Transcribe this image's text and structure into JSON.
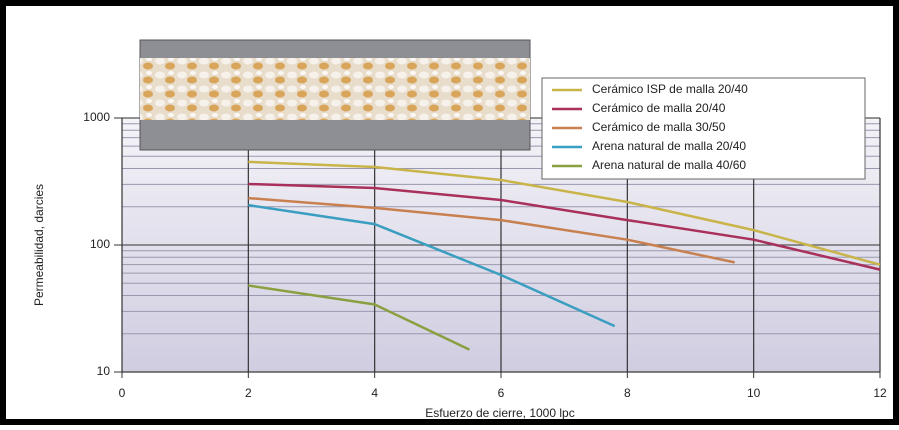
{
  "chart_data": {
    "type": "line",
    "x_label": "Esfuerzo de cierre, 1000 lpc",
    "y_label": "Permeabilidad, darcies",
    "xlim": [
      0,
      12
    ],
    "xticks": [
      0,
      2,
      4,
      6,
      8,
      10,
      12
    ],
    "ylim": [
      10,
      1000
    ],
    "yticks": [
      10,
      100,
      1000
    ],
    "log_y": true,
    "grid": true,
    "minor_grid": true,
    "legend": "upper right",
    "series": [
      {
        "name": "Cerámico ISP de malla 20/40",
        "color": "#c9b44a",
        "x": [
          2,
          4,
          6,
          8,
          10,
          12
        ],
        "values": [
          451,
          411,
          325,
          218,
          131,
          70
        ]
      },
      {
        "name": "Cerámico de malla 20/40",
        "color": "#a8305a",
        "x": [
          2,
          4,
          6,
          8,
          10,
          12
        ],
        "values": [
          302,
          281,
          226,
          157,
          110,
          64
        ]
      },
      {
        "name": "Cerámico de malla 30/50",
        "color": "#c88050",
        "x": [
          2,
          4,
          6,
          8,
          9.7
        ],
        "values": [
          234,
          196,
          157,
          110,
          73
        ]
      },
      {
        "name": "Arena natural de malla 20/40",
        "color": "#3a9ec0",
        "x": [
          2,
          4,
          6,
          7.8
        ],
        "values": [
          206,
          146,
          58,
          23
        ]
      },
      {
        "name": "Arena natural de malla 40/60",
        "color": "#8aa040",
        "x": [
          2,
          4,
          5.5
        ],
        "values": [
          48,
          34,
          15
        ]
      }
    ]
  }
}
